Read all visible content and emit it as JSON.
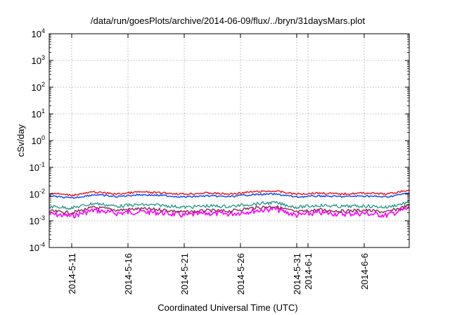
{
  "chart_data": {
    "type": "line",
    "title": "/data/run/goesPlots/archive/2014-06-09/flux/../bryn/31daysMars.plot",
    "xlabel": "Coordinated Universal Time (UTC)",
    "ylabel": "cSv/day",
    "y_scale": "log",
    "ylim": [
      "1e-4",
      "1e4"
    ],
    "y_ticks": [
      {
        "base": "10",
        "exp": "-4"
      },
      {
        "base": "10",
        "exp": "-3"
      },
      {
        "base": "10",
        "exp": "-2"
      },
      {
        "base": "10",
        "exp": "-1"
      },
      {
        "base": "10",
        "exp": "0"
      },
      {
        "base": "10",
        "exp": "1"
      },
      {
        "base": "10",
        "exp": "2"
      },
      {
        "base": "10",
        "exp": "3"
      },
      {
        "base": "10",
        "exp": "4"
      }
    ],
    "xlim": [
      "2014-05-09",
      "2014-06-10"
    ],
    "x_ticks": [
      "2014-5-11",
      "2014-5-16",
      "2014-5-21",
      "2014-5-26",
      "2014-5-31",
      "2014-6-1",
      "2014-6-6"
    ],
    "grid": true,
    "legend": "none",
    "series": [
      {
        "color": "#e8141a",
        "x": [
          "2014-05-09",
          "2014-05-11",
          "2014-05-13",
          "2014-05-15",
          "2014-05-17",
          "2014-05-19",
          "2014-05-21",
          "2014-05-23",
          "2014-05-25",
          "2014-05-27",
          "2014-05-29",
          "2014-05-31",
          "2014-06-02",
          "2014-06-04",
          "2014-06-06",
          "2014-06-08",
          "2014-06-10"
        ],
        "values": [
          0.011,
          0.009,
          0.012,
          0.01,
          0.012,
          0.011,
          0.01,
          0.011,
          0.01,
          0.012,
          0.013,
          0.01,
          0.011,
          0.01,
          0.011,
          0.01,
          0.014
        ]
      },
      {
        "color": "#0040ff",
        "x": [
          "2014-05-09",
          "2014-05-11",
          "2014-05-13",
          "2014-05-15",
          "2014-05-17",
          "2014-05-19",
          "2014-05-21",
          "2014-05-23",
          "2014-05-25",
          "2014-05-27",
          "2014-05-29",
          "2014-05-31",
          "2014-06-02",
          "2014-06-04",
          "2014-06-06",
          "2014-06-08",
          "2014-06-10"
        ],
        "values": [
          0.0085,
          0.007,
          0.0095,
          0.008,
          0.0095,
          0.0088,
          0.0078,
          0.0085,
          0.008,
          0.0095,
          0.01,
          0.0078,
          0.0085,
          0.008,
          0.0085,
          0.0078,
          0.011
        ]
      },
      {
        "color": "#2e9b8e",
        "x": [
          "2014-05-09",
          "2014-05-11",
          "2014-05-13",
          "2014-05-15",
          "2014-05-17",
          "2014-05-19",
          "2014-05-21",
          "2014-05-23",
          "2014-05-25",
          "2014-05-27",
          "2014-05-29",
          "2014-05-31",
          "2014-06-02",
          "2014-06-04",
          "2014-06-06",
          "2014-06-08",
          "2014-06-10"
        ],
        "values": [
          0.0035,
          0.003,
          0.0045,
          0.0035,
          0.004,
          0.0038,
          0.0032,
          0.0036,
          0.0034,
          0.0042,
          0.0048,
          0.0032,
          0.0038,
          0.0034,
          0.0036,
          0.0032,
          0.005
        ]
      },
      {
        "color": "#ff00ff",
        "x": [
          "2014-05-09",
          "2014-05-11",
          "2014-05-13",
          "2014-05-15",
          "2014-05-17",
          "2014-05-19",
          "2014-05-21",
          "2014-05-23",
          "2014-05-25",
          "2014-05-27",
          "2014-05-29",
          "2014-05-31",
          "2014-06-02",
          "2014-06-04",
          "2014-06-06",
          "2014-06-08",
          "2014-06-10"
        ],
        "values": [
          0.0018,
          0.0015,
          0.0025,
          0.0019,
          0.0022,
          0.002,
          0.0016,
          0.0019,
          0.0018,
          0.0023,
          0.0028,
          0.0016,
          0.002,
          0.0018,
          0.0019,
          0.0016,
          0.003
        ]
      },
      {
        "color": "#8a2a55",
        "x": [
          "2014-05-09",
          "2014-05-11",
          "2014-05-13",
          "2014-05-15",
          "2014-05-17",
          "2014-05-19",
          "2014-05-21",
          "2014-05-23",
          "2014-05-25",
          "2014-05-27",
          "2014-05-29",
          "2014-05-31",
          "2014-06-02",
          "2014-06-04",
          "2014-06-06",
          "2014-06-08",
          "2014-06-10"
        ],
        "values": [
          0.0023,
          0.002,
          0.0032,
          0.0025,
          0.0028,
          0.0026,
          0.0021,
          0.0024,
          0.0023,
          0.003,
          0.0035,
          0.0021,
          0.0026,
          0.0023,
          0.0025,
          0.0021,
          0.0038
        ]
      }
    ]
  }
}
